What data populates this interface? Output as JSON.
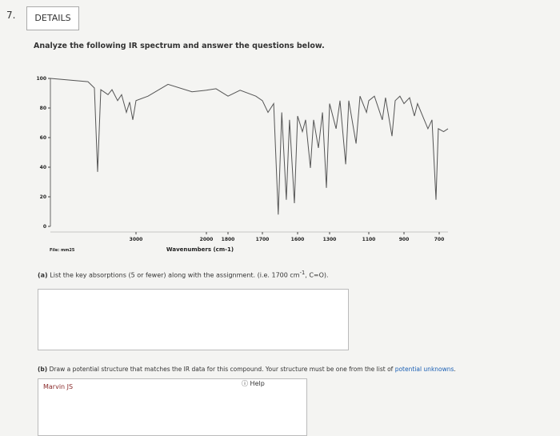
{
  "question": {
    "number": "7.",
    "tab": "DETAILS",
    "prompt": "Analyze the following IR spectrum and answer the questions below."
  },
  "chart_data": {
    "type": "line",
    "x_label": "Wavenumbers (cm-1)",
    "file_label": "File: mm25",
    "x": [
      4000,
      3561,
      3486,
      3449,
      3411,
      3327,
      3280,
      3215,
      3168,
      3112,
      3075,
      3037,
      3000,
      2830,
      2545,
      2205,
      2000,
      1911,
      1800,
      1765,
      1719,
      1700,
      1684,
      1668,
      1655,
      1645,
      1632,
      1623,
      1609,
      1600,
      1555,
      1525,
      1480,
      1450,
      1405,
      1367,
      1330,
      1300,
      1267,
      1247,
      1218,
      1202,
      1165,
      1145,
      1112,
      1100,
      1068,
      1023,
      1005,
      968,
      950,
      923,
      900,
      868,
      841,
      823,
      764,
      741,
      718,
      705,
      675,
      650
    ],
    "values": [
      100,
      97.8,
      93.5,
      36.8,
      92.4,
      89,
      92.4,
      85,
      89,
      77,
      84,
      72,
      85,
      88,
      96,
      91,
      92,
      93,
      88,
      92,
      88,
      85,
      77,
      83,
      8,
      77,
      18,
      72,
      15.7,
      74.6,
      64,
      72,
      39.5,
      72,
      53,
      77,
      26,
      83,
      66,
      85,
      42,
      85,
      56,
      88,
      77,
      85,
      88,
      72,
      87,
      61,
      85,
      88,
      83,
      87,
      74.6,
      83,
      66,
      72,
      18,
      66,
      64,
      66
    ],
    "color": "#555555",
    "xlim": [
      4000,
      650
    ],
    "xticks": [
      3000,
      2000,
      1800,
      1700,
      1600,
      1300,
      1100,
      900,
      700
    ],
    "ylim": [
      0,
      100
    ],
    "yticks": [
      100,
      80,
      60,
      40,
      20,
      0
    ]
  },
  "part_a": {
    "label": "(a)",
    "text": "List the key absorptions (5 or fewer) along with the assignment. (i.e. 1700 cm",
    "sup": "-1",
    "end": ", C=O)."
  },
  "part_b": {
    "label": "(b)",
    "text": "Draw a potential structure that matches the IR data for this compound. Your structure must be one from the list of",
    "link": "potential unknowns",
    "end": "."
  },
  "editor": {
    "name": "Marvin JS",
    "help": "Help"
  }
}
